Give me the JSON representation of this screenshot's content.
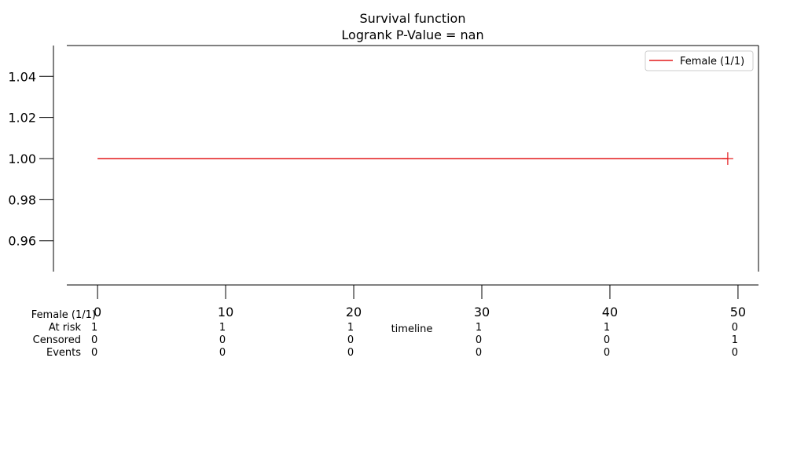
{
  "chart_data": {
    "type": "line",
    "title": "Survival function",
    "subtitle": "Logrank P-Value = nan",
    "xlabel": "timeline",
    "ylabel": "",
    "xlim": [
      -2.4,
      51.6
    ],
    "ylim": [
      0.945,
      1.055
    ],
    "x_ticks": [
      0,
      10,
      20,
      30,
      40,
      50
    ],
    "y_ticks": [
      0.96,
      0.98,
      1.0,
      1.02,
      1.04
    ],
    "y_tick_labels": [
      "0.96",
      "0.98",
      "1.00",
      "1.02",
      "1.04"
    ],
    "grid": false,
    "legend_position": "top-right",
    "series": [
      {
        "name": "Female (1/1)",
        "color": "#e41a1c",
        "x": [
          0,
          49.2
        ],
        "y": [
          1.0,
          1.0
        ],
        "censor_marks": [
          {
            "x": 49.2,
            "y": 1.0
          }
        ]
      }
    ],
    "risk_table": {
      "group_label": "Female (1/1)",
      "rows": [
        {
          "label": "At risk",
          "values": [
            "1",
            "1",
            "1",
            "1",
            "1",
            "0"
          ]
        },
        {
          "label": "Censored",
          "values": [
            "0",
            "0",
            "0",
            "0",
            "0",
            "1"
          ]
        },
        {
          "label": "Events",
          "values": [
            "0",
            "0",
            "0",
            "0",
            "0",
            "0"
          ]
        }
      ]
    }
  }
}
